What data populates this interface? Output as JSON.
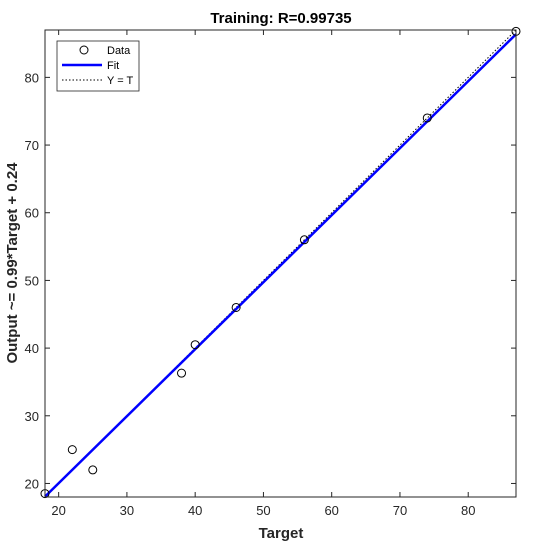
{
  "chart_data": {
    "type": "scatter",
    "title": "Training: R=0.99735",
    "xlabel": "Target",
    "ylabel": "Output ~= 0.99*Target + 0.24",
    "xlim": [
      18,
      87
    ],
    "ylim": [
      18,
      87
    ],
    "xticks": [
      20,
      30,
      40,
      50,
      60,
      70,
      80
    ],
    "yticks": [
      20,
      30,
      40,
      50,
      60,
      70,
      80
    ],
    "grid": false,
    "legend": {
      "placement": "top-left",
      "entries": [
        "Data",
        "Fit",
        "Y = T"
      ]
    },
    "series": [
      {
        "name": "Data",
        "marker": "open-circle",
        "color": "#000000",
        "x": [
          18,
          22,
          25,
          38,
          40,
          46,
          56,
          74,
          87
        ],
        "y": [
          18.5,
          25,
          22,
          36.3,
          40.5,
          46,
          56,
          74,
          86.8
        ]
      },
      {
        "name": "Fit",
        "color": "#0000ff",
        "slope": 0.99,
        "intercept": 0.24
      },
      {
        "name": "Y = T",
        "color": "#000000",
        "style": "dotted"
      }
    ]
  }
}
